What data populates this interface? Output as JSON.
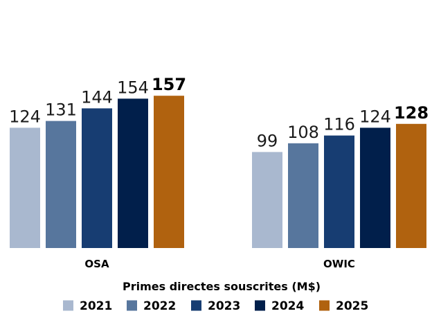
{
  "chart_data": {
    "type": "bar",
    "categories": [
      "OSA",
      "OWIC"
    ],
    "series": [
      {
        "name": "2021",
        "values": [
          124,
          99
        ],
        "color": "#a9b8cf"
      },
      {
        "name": "2022",
        "values": [
          131,
          108
        ],
        "color": "#57769d"
      },
      {
        "name": "2023",
        "values": [
          144,
          116
        ],
        "color": "#173d72"
      },
      {
        "name": "2024",
        "values": [
          154,
          124
        ],
        "color": "#011f4b"
      },
      {
        "name": "2025",
        "values": [
          157,
          128
        ],
        "color": "#b0620f"
      }
    ],
    "highlight_series": "2025",
    "xlabel": "Primes directes souscrites (M$)",
    "ylabel": "",
    "ylim": [
      0,
      170
    ],
    "grid": false,
    "data_labels": true,
    "legend_position": "bottom"
  }
}
